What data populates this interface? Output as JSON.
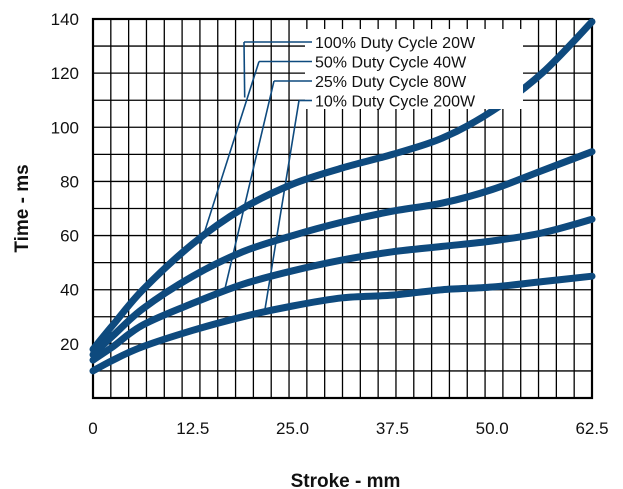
{
  "chart_data": {
    "type": "line",
    "title": "",
    "xlabel": "Stroke - mm",
    "ylabel": "Time - ms",
    "xlim": [
      0,
      62.5
    ],
    "ylim": [
      0,
      140
    ],
    "x_tick_labels": [
      "0",
      "12.5",
      "25.0",
      "37.5",
      "50.0",
      "62.5"
    ],
    "y_tick_labels": [
      "20",
      "40",
      "60",
      "80",
      "100",
      "120",
      "140"
    ],
    "grid": true,
    "series_color": "#0e4a7e",
    "series": [
      {
        "name": "100% Duty Cycle 20W",
        "points": [
          [
            0,
            18
          ],
          [
            2.5,
            27
          ],
          [
            6.25,
            40
          ],
          [
            12.5,
            57
          ],
          [
            18.75,
            70
          ],
          [
            25,
            79
          ],
          [
            31.25,
            85
          ],
          [
            37.5,
            90
          ],
          [
            43.75,
            96
          ],
          [
            50,
            106
          ],
          [
            56.25,
            120
          ],
          [
            62.5,
            139
          ]
        ]
      },
      {
        "name": "50% Duty Cycle 40W",
        "points": [
          [
            0,
            16
          ],
          [
            2.5,
            23
          ],
          [
            6.25,
            33
          ],
          [
            12.5,
            45
          ],
          [
            18.75,
            54
          ],
          [
            25,
            60
          ],
          [
            31.25,
            65
          ],
          [
            37.5,
            69
          ],
          [
            43.75,
            72
          ],
          [
            50,
            77
          ],
          [
            56.25,
            84
          ],
          [
            62.5,
            91
          ]
        ]
      },
      {
        "name": "25% Duty Cycle 80W",
        "points": [
          [
            0,
            14
          ],
          [
            2.5,
            19
          ],
          [
            6.25,
            27
          ],
          [
            12.5,
            35
          ],
          [
            18.75,
            42
          ],
          [
            25,
            47
          ],
          [
            31.25,
            51
          ],
          [
            37.5,
            54
          ],
          [
            43.75,
            56
          ],
          [
            50,
            58
          ],
          [
            56.25,
            61
          ],
          [
            62.5,
            66
          ]
        ]
      },
      {
        "name": "10% Duty Cycle 200W",
        "points": [
          [
            0,
            10
          ],
          [
            2.5,
            14
          ],
          [
            6.25,
            19
          ],
          [
            12.5,
            25
          ],
          [
            18.75,
            30
          ],
          [
            25,
            34
          ],
          [
            31.25,
            37
          ],
          [
            37.5,
            38
          ],
          [
            43.75,
            40
          ],
          [
            50,
            41
          ],
          [
            56.25,
            43
          ],
          [
            62.5,
            45
          ]
        ]
      }
    ],
    "legend_placement": "top-right",
    "legend": [
      {
        "label": "100% Duty Cycle 20W",
        "leader_to": [
          19,
          111
        ]
      },
      {
        "label": "50% Duty Cycle 40W",
        "leader_to": [
          13.5,
          57
        ]
      },
      {
        "label": "25% Duty Cycle 80W",
        "leader_to": [
          16.5,
          40
        ]
      },
      {
        "label": "10% Duty Cycle 200W",
        "leader_to": [
          21.5,
          32
        ]
      }
    ]
  }
}
